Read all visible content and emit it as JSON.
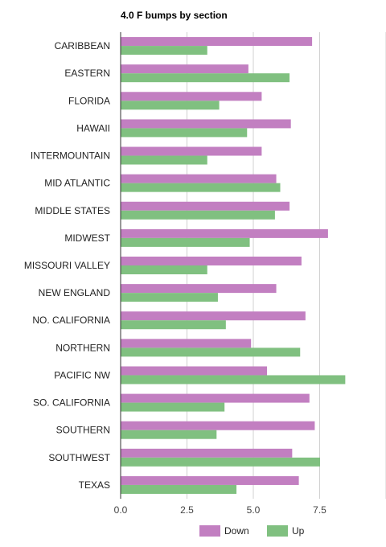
{
  "chart_data": {
    "type": "bar",
    "orientation": "horizontal",
    "title": "4.0 F bumps by section",
    "xlabel": "",
    "ylabel": "",
    "xlim": [
      0,
      10
    ],
    "x_ticks": [
      "0.0",
      "2.5",
      "5.0",
      "7.5"
    ],
    "grid": true,
    "legend_position": "bottom",
    "categories": [
      "CARIBBEAN",
      "EASTERN",
      "FLORIDA",
      "HAWAII",
      "INTERMOUNTAIN",
      "MID ATLANTIC",
      "MIDDLE STATES",
      "MIDWEST",
      "MISSOURI VALLEY",
      "NEW ENGLAND",
      "NO. CALIFORNIA",
      "NORTHERN",
      "PACIFIC NW",
      "SO. CALIFORNIA",
      "SOUTHERN",
      "SOUTHWEST",
      "TEXAS"
    ],
    "series": [
      {
        "name": "Down",
        "color": "#c27fc1",
        "values": [
          7.2,
          4.8,
          5.3,
          6.4,
          5.3,
          5.85,
          6.35,
          7.8,
          6.8,
          5.85,
          6.95,
          4.9,
          5.5,
          7.1,
          7.3,
          6.45,
          6.7
        ]
      },
      {
        "name": "Up",
        "color": "#80c080",
        "values": [
          3.25,
          6.35,
          3.7,
          4.75,
          3.25,
          6.0,
          5.8,
          4.85,
          3.25,
          3.65,
          3.95,
          6.75,
          8.45,
          3.9,
          3.6,
          7.5,
          4.35
        ]
      }
    ]
  }
}
